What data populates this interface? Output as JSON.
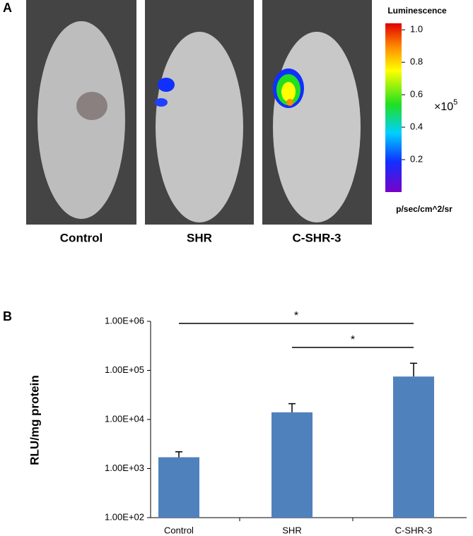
{
  "panel_a": {
    "label": "A",
    "images": [
      "Control",
      "SHR",
      "C-SHR-3"
    ],
    "colorbar": {
      "title": "Luminescence",
      "ticks": [
        0.2,
        0.4,
        0.6,
        0.8,
        {
          "value": 1,
          "label": "1.0"
        }
      ],
      "lim": [
        0,
        1.04
      ],
      "multiplier": "×10",
      "exponent": "5",
      "units": "p/sec/cm^2/sr"
    }
  },
  "chart_data": {
    "type": "bar",
    "panel_label": "B",
    "ylabel": "RLU/mg protein",
    "categories": [
      "Control",
      "SHR",
      "C-SHR-3"
    ],
    "values": [
      1700,
      14000,
      75000
    ],
    "errors": [
      500,
      7000,
      65000
    ],
    "color": "#4f81bd",
    "log_scale": true,
    "ylim": [
      100,
      1000000
    ],
    "yticks": [
      {
        "value": 100,
        "label": "1.00E+02"
      },
      {
        "value": 1000,
        "label": "1.00E+03"
      },
      {
        "value": 10000,
        "label": "1.00E+04"
      },
      {
        "value": 100000,
        "label": "1.00E+05"
      },
      {
        "value": 1000000,
        "label": "1.00E+06"
      }
    ],
    "annotations": [
      {
        "text": "*",
        "between": [
          "Control",
          "C-SHR-3"
        ]
      },
      {
        "text": "*",
        "between": [
          "SHR",
          "C-SHR-3"
        ]
      }
    ]
  }
}
